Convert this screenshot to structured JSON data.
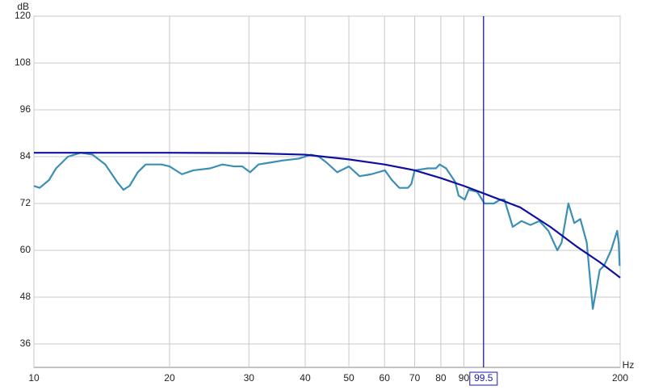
{
  "chart_data": {
    "type": "line",
    "x_label": "Hz",
    "y_label": "dB",
    "xscale": "log",
    "xlim": [
      10,
      200
    ],
    "ylim": [
      30,
      120
    ],
    "xticks": [
      10,
      20,
      30,
      40,
      50,
      60,
      70,
      80,
      90,
      200
    ],
    "yticks": [
      36,
      48,
      60,
      72,
      84,
      96,
      108,
      120
    ],
    "grid": true,
    "cursor": 99.5,
    "cursor_color": "#1a1aa8",
    "series": [
      {
        "color": "#3b8fb4",
        "x": [
          10,
          10.3,
          10.8,
          11.2,
          11.9,
          12.7,
          13.5,
          14.4,
          15.3,
          15.8,
          16.3,
          17,
          17.7,
          19.2,
          20,
          21.3,
          22.6,
          24.6,
          26.2,
          27.8,
          29,
          30.2,
          31.5,
          33.5,
          35.6,
          38.7,
          41.2,
          42.9,
          44.6,
          47.1,
          50,
          52.8,
          56.1,
          60.1,
          62.3,
          64.7,
          67.6,
          68.8,
          70,
          74.9,
          78,
          79.5,
          82.2,
          86.1,
          87.6,
          90.4,
          92.2,
          96.3,
          100,
          104.9,
          108.4,
          110.7,
          115.5,
          120.8,
          126.4,
          132.4,
          138.6,
          145.1,
          148.3,
          153.5,
          158.2,
          163.2,
          168.6,
          173.9,
          180.2,
          184.1,
          190.9,
          197,
          198.5,
          199.5
        ],
        "values": [
          76.5,
          76,
          78,
          81,
          84,
          85,
          84.5,
          82,
          77.5,
          75.5,
          76.5,
          80,
          82,
          82,
          81.5,
          79.5,
          80.5,
          81,
          82,
          81.5,
          81.5,
          80,
          82,
          82.5,
          83,
          83.5,
          84.5,
          84,
          82.5,
          80,
          81.5,
          79,
          79.5,
          80.5,
          78,
          76,
          76,
          77,
          80.5,
          81,
          81,
          82,
          81,
          77.5,
          74,
          73,
          75.5,
          75,
          72,
          72,
          73,
          73,
          66,
          67.5,
          66.5,
          67.5,
          65,
          60,
          62,
          72,
          67,
          68,
          62,
          45,
          55,
          56,
          60,
          65,
          62,
          56
        ]
      },
      {
        "color": "#1010a0",
        "x": [
          10,
          20,
          30,
          40,
          50,
          60,
          70,
          80,
          90,
          100,
          120,
          140,
          160,
          180,
          200
        ],
        "values": [
          85,
          85,
          84.9,
          84.5,
          83.3,
          82,
          80.5,
          78.5,
          76.5,
          74.5,
          71,
          66,
          61,
          57,
          53
        ]
      }
    ]
  }
}
